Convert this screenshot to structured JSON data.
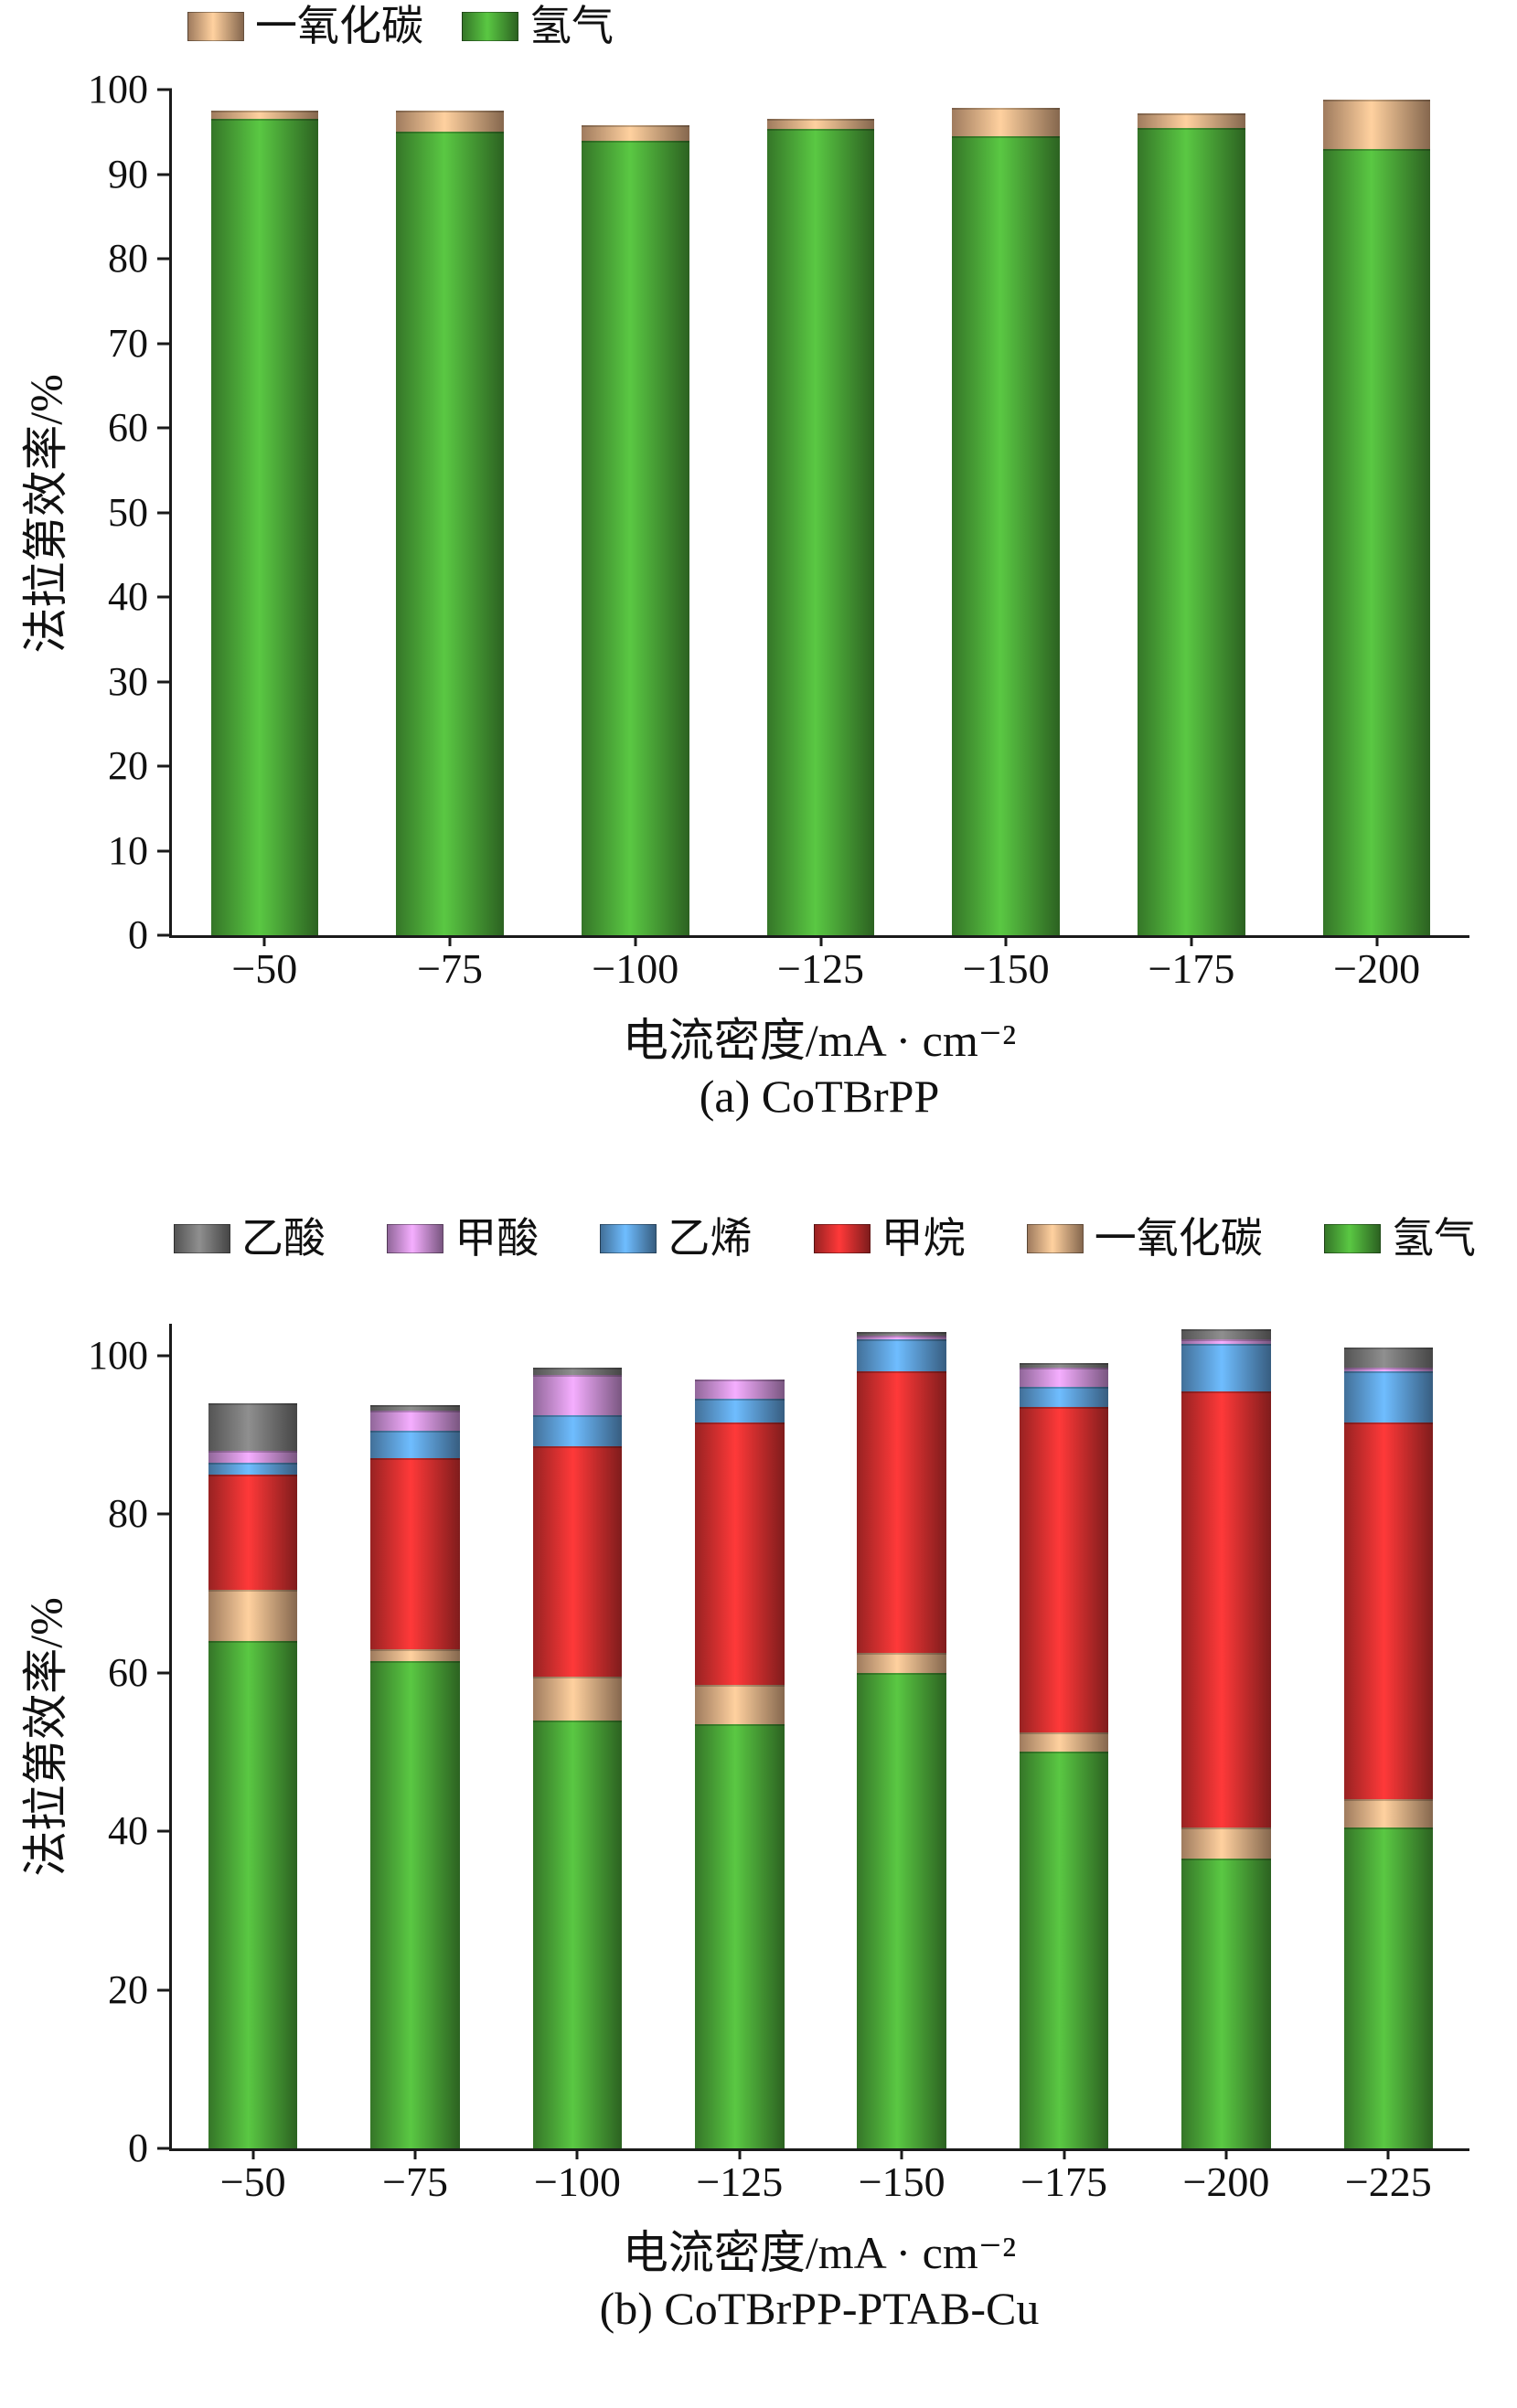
{
  "chart_data": [
    {
      "type": "bar",
      "stacked": true,
      "caption": "(a) CoTBrPP",
      "ylabel": "法拉第效率/%",
      "xlabel": "电流密度/mA · cm⁻²",
      "ymax": 100,
      "yticks": [
        0,
        10,
        20,
        30,
        40,
        50,
        60,
        70,
        80,
        90,
        100
      ],
      "bar_frac": 0.58,
      "grid": false,
      "legend_position": "top",
      "categories": [
        "−50",
        "−75",
        "−100",
        "−125",
        "−150",
        "−175",
        "−200"
      ],
      "series": [
        {
          "id": "hydrogen",
          "name": "氢气",
          "color": "#4aa437",
          "values": [
            96.5,
            95.0,
            94.0,
            95.3,
            94.5,
            95.5,
            93.0
          ]
        },
        {
          "id": "carbon-monoxide",
          "name": "一氧化碳",
          "color": "#ddab82",
          "values": [
            1.0,
            2.5,
            1.8,
            1.2,
            3.3,
            1.7,
            5.8
          ]
        }
      ],
      "legend_order": [
        "carbon-monoxide",
        "hydrogen"
      ]
    },
    {
      "type": "bar",
      "stacked": true,
      "caption": "(b) CoTBrPP-PTAB-Cu",
      "ylabel": "法拉第效率/%",
      "xlabel": "电流密度/mA · cm⁻²",
      "ymax": 104,
      "yticks": [
        0,
        20,
        40,
        60,
        80,
        100
      ],
      "bar_frac": 0.55,
      "grid": false,
      "legend_position": "top",
      "categories": [
        "−50",
        "−75",
        "−100",
        "−125",
        "−150",
        "−175",
        "−200",
        "−225"
      ],
      "series": [
        {
          "id": "hydrogen",
          "name": "氢气",
          "color": "#4aa437",
          "values": [
            64.0,
            61.5,
            54.0,
            53.5,
            60.0,
            50.0,
            36.5,
            40.5
          ]
        },
        {
          "id": "carbon-monoxide",
          "name": "一氧化碳",
          "color": "#ddab82",
          "values": [
            6.5,
            1.5,
            5.5,
            5.0,
            2.5,
            2.5,
            4.0,
            3.5
          ]
        },
        {
          "id": "methane",
          "name": "甲烷",
          "color": "#d32f2f",
          "values": [
            14.5,
            24.0,
            29.0,
            33.0,
            35.5,
            41.0,
            55.0,
            47.5
          ]
        },
        {
          "id": "ethylene",
          "name": "乙烯",
          "color": "#5b9bd5",
          "values": [
            1.5,
            3.5,
            4.0,
            3.0,
            4.0,
            2.5,
            6.0,
            6.5
          ]
        },
        {
          "id": "formic-acid",
          "name": "甲酸",
          "color": "#c98fd6",
          "values": [
            1.5,
            2.5,
            5.0,
            2.5,
            0.5,
            2.5,
            0.5,
            0.5
          ]
        },
        {
          "id": "acetic-acid",
          "name": "乙酸",
          "color": "#757575",
          "values": [
            6.0,
            0.8,
            1.0,
            0.0,
            0.5,
            0.5,
            1.3,
            2.5
          ]
        }
      ],
      "legend_order": [
        "acetic-acid",
        "formic-acid",
        "ethylene",
        "methane",
        "carbon-monoxide",
        "hydrogen"
      ]
    }
  ]
}
